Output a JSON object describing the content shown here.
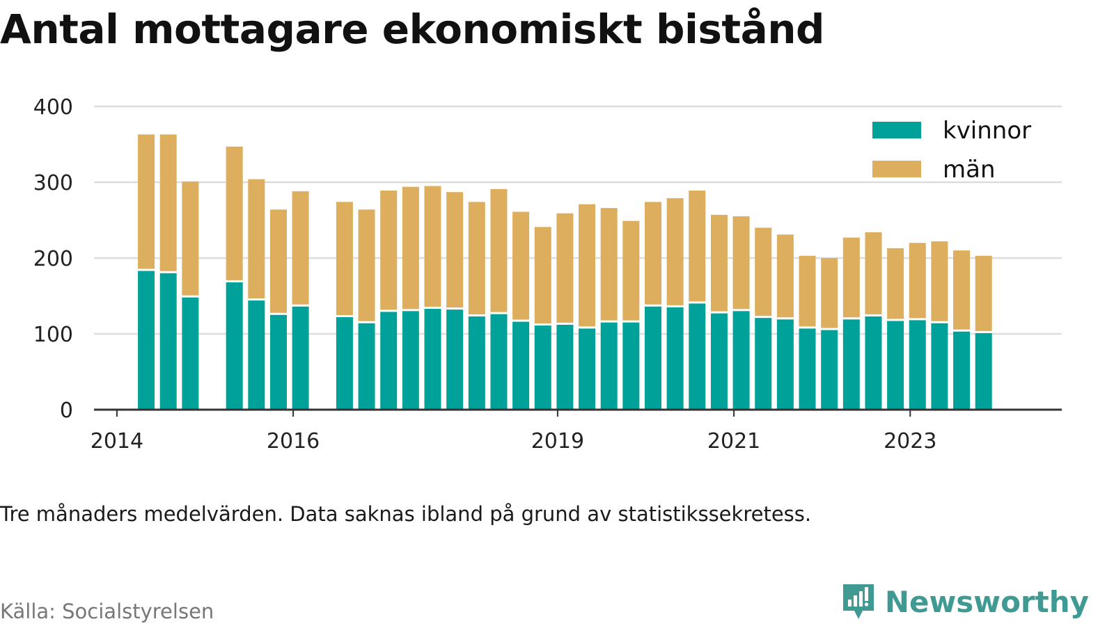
{
  "title": "Antal mottagare ekonomiskt bistånd",
  "note": "Tre månaders medelvärden. Data saknas ibland på grund av statistikssekretess.",
  "source": "Källa: Socialstyrelsen",
  "brand": "Newsworthy",
  "colors": {
    "kvinnor": "#00a199",
    "man": "#dcae5d",
    "grid": "#dddddd",
    "axis": "#333333",
    "brand": "#3f9a94"
  },
  "chart_data": {
    "type": "bar",
    "stacked": true,
    "ylim": [
      0,
      400
    ],
    "yticks": [
      0,
      100,
      200,
      300,
      400
    ],
    "xticks": [
      {
        "label": "2014",
        "x": 2014.0
      },
      {
        "label": "2016",
        "x": 2016.0
      },
      {
        "label": "2019",
        "x": 2019.0
      },
      {
        "label": "2021",
        "x": 2021.0
      },
      {
        "label": "2023",
        "x": 2023.0
      }
    ],
    "x": [
      2014.333,
      2014.583,
      2014.833,
      2015.333,
      2015.583,
      2015.833,
      2016.083,
      2016.583,
      2016.833,
      2017.083,
      2017.333,
      2017.583,
      2017.833,
      2018.083,
      2018.333,
      2018.583,
      2018.833,
      2019.083,
      2019.333,
      2019.583,
      2019.833,
      2020.083,
      2020.333,
      2020.583,
      2020.833,
      2021.083,
      2021.333,
      2021.583,
      2021.833,
      2022.083,
      2022.333,
      2022.583,
      2022.833,
      2023.083,
      2023.333,
      2023.583,
      2023.833
    ],
    "series": [
      {
        "name": "kvinnor",
        "values": [
          183,
          180,
          148,
          168,
          144,
          125,
          136,
          122,
          114,
          129,
          130,
          133,
          132,
          123,
          126,
          116,
          111,
          112,
          107,
          115,
          115,
          136,
          135,
          140,
          127,
          130,
          121,
          119,
          107,
          105,
          119,
          123,
          117,
          118,
          114,
          103,
          101
        ]
      },
      {
        "name": "män",
        "values": [
          180,
          183,
          153,
          179,
          160,
          139,
          152,
          152,
          150,
          160,
          164,
          162,
          155,
          151,
          165,
          145,
          130,
          147,
          164,
          151,
          134,
          138,
          144,
          149,
          130,
          125,
          119,
          112,
          96,
          95,
          108,
          111,
          96,
          102,
          108,
          107,
          102
        ]
      }
    ],
    "legend": "top-right"
  }
}
